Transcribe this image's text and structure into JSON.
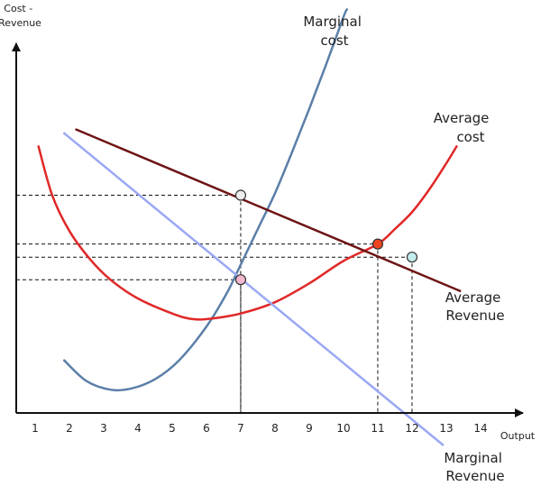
{
  "chart_data": {
    "type": "line",
    "title": "",
    "xlabel": "Output",
    "ylabel": [
      "Cost -",
      "Revenue"
    ],
    "x_ticks": [
      "1",
      "2",
      "3",
      "4",
      "5",
      "6",
      "7",
      "8",
      "9",
      "10",
      "11",
      "12",
      "13",
      "14"
    ],
    "xlim": [
      0.45,
      15.5
    ],
    "ylim": [
      0,
      11
    ],
    "grid": false,
    "series": [
      {
        "name": [
          "Marginal",
          "cost"
        ],
        "color": "#5b7fa8",
        "points": [
          [
            1.85,
            1.4
          ],
          [
            2.5,
            0.85
          ],
          [
            3.2,
            0.62
          ],
          [
            3.8,
            0.65
          ],
          [
            4.5,
            0.9
          ],
          [
            5.2,
            1.4
          ],
          [
            6,
            2.3
          ],
          [
            6.6,
            3.2
          ],
          [
            7,
            3.95
          ],
          [
            7.5,
            4.9
          ],
          [
            8,
            5.85
          ],
          [
            8.5,
            6.95
          ],
          [
            9,
            8.1
          ],
          [
            9.5,
            9.3
          ],
          [
            10,
            10.55
          ],
          [
            10.1,
            10.75
          ]
        ]
      },
      {
        "name": [
          "Average",
          "cost"
        ],
        "color": "#e02828",
        "points": [
          [
            1.1,
            7.1
          ],
          [
            1.5,
            5.8
          ],
          [
            2,
            4.85
          ],
          [
            2.6,
            4.1
          ],
          [
            3.2,
            3.55
          ],
          [
            4,
            3.05
          ],
          [
            5,
            2.65
          ],
          [
            5.6,
            2.5
          ],
          [
            6.2,
            2.52
          ],
          [
            7,
            2.65
          ],
          [
            8,
            2.95
          ],
          [
            9,
            3.45
          ],
          [
            10,
            4.05
          ],
          [
            11,
            4.5
          ],
          [
            11.5,
            4.9
          ],
          [
            12,
            5.35
          ],
          [
            12.5,
            5.95
          ],
          [
            13,
            6.65
          ],
          [
            13.3,
            7.1
          ]
        ]
      },
      {
        "name": [
          "Average",
          "Revenue"
        ],
        "color": "#6e1414",
        "points": [
          [
            2.2,
            7.55
          ],
          [
            13.4,
            3.25
          ]
        ]
      },
      {
        "name": [
          "Marginal",
          "Revenue"
        ],
        "color": "#9aa8f5",
        "points": [
          [
            1.85,
            7.45
          ],
          [
            12.9,
            -0.85
          ]
        ]
      }
    ],
    "guide_lines": [
      {
        "x": 7,
        "y": 5.8
      },
      {
        "x": 7,
        "y": 3.55
      },
      {
        "x": 11,
        "y": 4.5
      },
      {
        "x": 12,
        "y": 4.15
      }
    ],
    "markers": [
      {
        "x": 7,
        "y": 5.8,
        "color": "#eeeeee"
      },
      {
        "x": 7,
        "y": 3.55,
        "color": "#f2b8d0"
      },
      {
        "x": 11,
        "y": 4.5,
        "color": "#ee4422"
      },
      {
        "x": 12,
        "y": 4.15,
        "color": "#c4ecee"
      }
    ]
  }
}
